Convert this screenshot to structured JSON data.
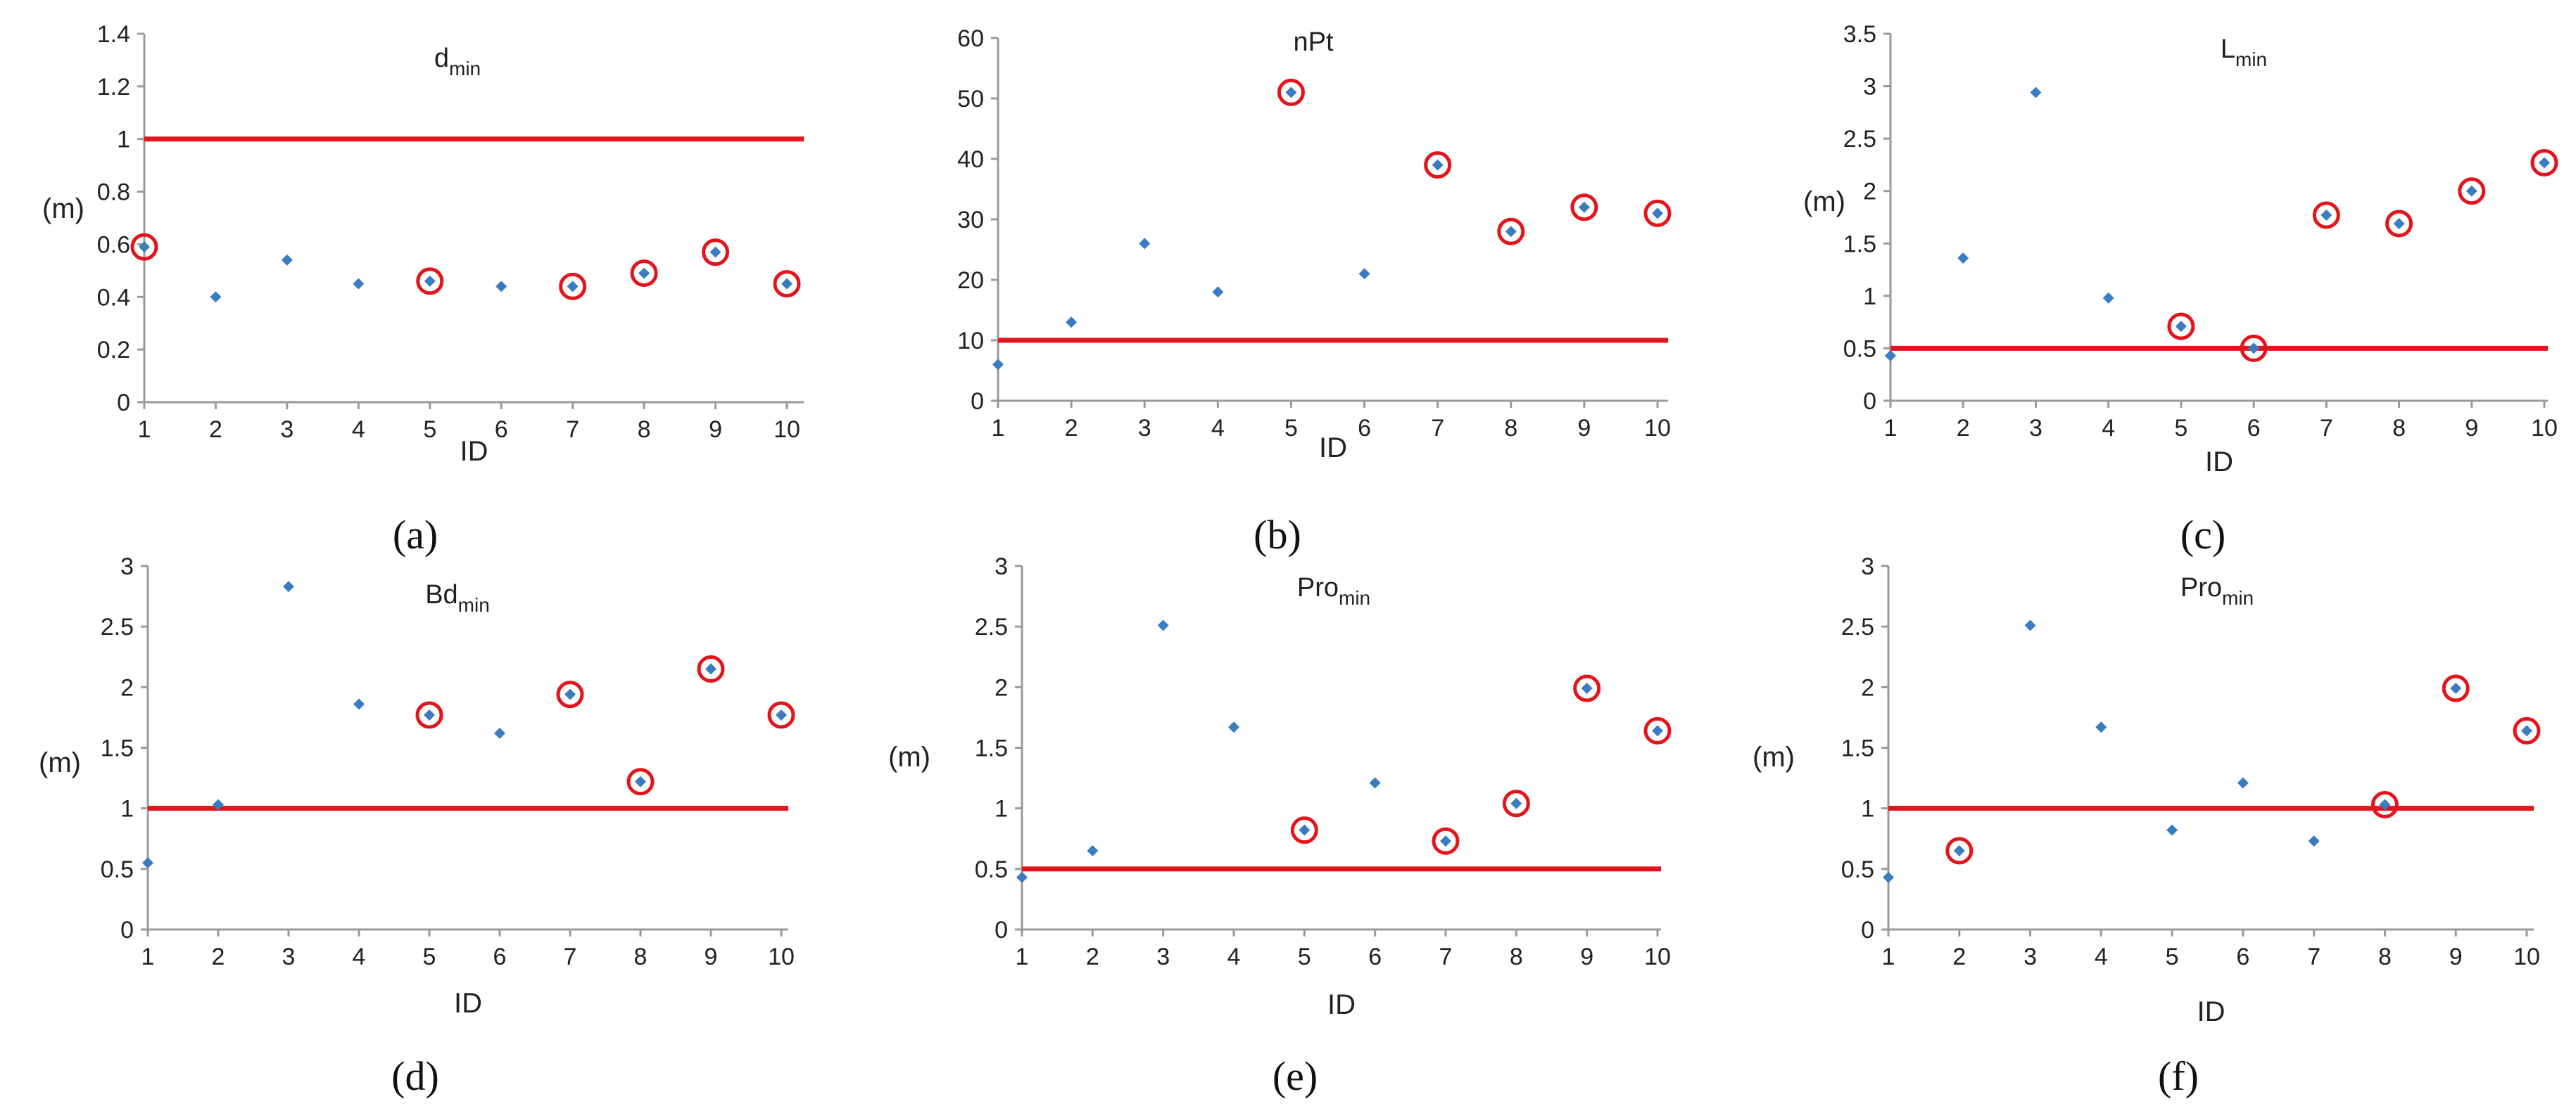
{
  "colors": {
    "point": "#3a7cc1",
    "threshold": "#e3141b",
    "highlight": "#e3141b",
    "axis": "#9a9a9a"
  },
  "chart_data": [
    {
      "type": "scatter",
      "caption": "(a)",
      "title": "d",
      "title_sub": "min",
      "xlabel": "ID",
      "ylabel": "(m)",
      "x": [
        1,
        2,
        3,
        4,
        5,
        6,
        7,
        8,
        9,
        10
      ],
      "values": [
        0.59,
        0.4,
        0.54,
        0.45,
        0.46,
        0.44,
        0.44,
        0.49,
        0.57,
        0.45
      ],
      "highlighted": [
        1,
        5,
        7,
        8,
        9,
        10
      ],
      "threshold": 1,
      "ylim": [
        0,
        1.4
      ],
      "yticks": [
        0,
        0.2,
        0.4,
        0.6,
        0.8,
        1,
        1.2,
        1.4
      ],
      "ytick_labels": [
        "0",
        "0.2",
        "0.4",
        "0.6",
        "0.8",
        "1",
        "1.2",
        "1.4"
      ]
    },
    {
      "type": "scatter",
      "caption": "(b)",
      "title": "nPt",
      "title_sub": "",
      "xlabel": "ID",
      "ylabel": "",
      "x": [
        1,
        2,
        3,
        4,
        5,
        6,
        7,
        8,
        9,
        10
      ],
      "values": [
        6,
        13,
        26,
        18,
        51,
        21,
        39,
        28,
        32,
        31
      ],
      "highlighted": [
        5,
        7,
        8,
        9,
        10
      ],
      "threshold": 10,
      "ylim": [
        0,
        60
      ],
      "yticks": [
        0,
        10,
        20,
        30,
        40,
        50,
        60
      ],
      "ytick_labels": [
        "0",
        "10",
        "20",
        "30",
        "40",
        "50",
        "60"
      ]
    },
    {
      "type": "scatter",
      "caption": "(c)",
      "title": "L",
      "title_sub": "min",
      "xlabel": "ID",
      "ylabel": "(m)",
      "x": [
        1,
        2,
        3,
        4,
        5,
        6,
        7,
        8,
        9,
        10
      ],
      "values": [
        0.43,
        1.36,
        2.94,
        0.98,
        0.71,
        0.5,
        1.77,
        1.69,
        2.0,
        2.27
      ],
      "highlighted": [
        5,
        6,
        7,
        8,
        9,
        10
      ],
      "threshold": 0.5,
      "ylim": [
        0,
        3.5
      ],
      "yticks": [
        0,
        0.5,
        1,
        1.5,
        2,
        2.5,
        3,
        3.5
      ],
      "ytick_labels": [
        "0",
        "0.5",
        "1",
        "1.5",
        "2",
        "2.5",
        "3",
        "3.5"
      ]
    },
    {
      "type": "scatter",
      "caption": "(d)",
      "title": "Bd",
      "title_sub": "min",
      "xlabel": "ID",
      "ylabel": "(m)",
      "x": [
        1,
        2,
        3,
        4,
        5,
        6,
        7,
        8,
        9,
        10
      ],
      "values": [
        0.55,
        1.03,
        2.83,
        1.86,
        1.77,
        1.62,
        1.94,
        1.22,
        2.15,
        1.77
      ],
      "highlighted": [
        5,
        7,
        8,
        9,
        10
      ],
      "threshold": 1,
      "ylim": [
        0,
        3
      ],
      "yticks": [
        0,
        0.5,
        1,
        1.5,
        2,
        2.5,
        3
      ],
      "ytick_labels": [
        "0",
        "0.5",
        "1",
        "1.5",
        "2",
        "2.5",
        "3"
      ]
    },
    {
      "type": "scatter",
      "caption": "(e)",
      "title": "Pro",
      "title_sub": "min",
      "xlabel": "ID",
      "ylabel": "(m)",
      "x": [
        1,
        2,
        3,
        4,
        5,
        6,
        7,
        8,
        9,
        10
      ],
      "values": [
        0.43,
        0.65,
        2.51,
        1.67,
        0.82,
        1.21,
        0.73,
        1.04,
        1.99,
        1.64
      ],
      "highlighted": [
        5,
        7,
        8,
        9,
        10
      ],
      "threshold": 0.5,
      "ylim": [
        0,
        3
      ],
      "yticks": [
        0,
        0.5,
        1,
        1.5,
        2,
        2.5,
        3
      ],
      "ytick_labels": [
        "0",
        "0.5",
        "1",
        "1.5",
        "2",
        "2.5",
        "3"
      ]
    },
    {
      "type": "scatter",
      "caption": "(f)",
      "title": "Pro",
      "title_sub": "min",
      "xlabel": "ID",
      "ylabel": "(m)",
      "x": [
        1,
        2,
        3,
        4,
        5,
        6,
        7,
        8,
        9,
        10
      ],
      "values": [
        0.43,
        0.65,
        2.51,
        1.67,
        0.82,
        1.21,
        0.73,
        1.03,
        1.99,
        1.64
      ],
      "highlighted": [
        2,
        8,
        9,
        10
      ],
      "threshold": 1,
      "ylim": [
        0,
        3
      ],
      "yticks": [
        0,
        0.5,
        1,
        1.5,
        2,
        2.5,
        3
      ],
      "ytick_labels": [
        "0",
        "0.5",
        "1",
        "1.5",
        "2",
        "2.5",
        "3"
      ]
    }
  ]
}
